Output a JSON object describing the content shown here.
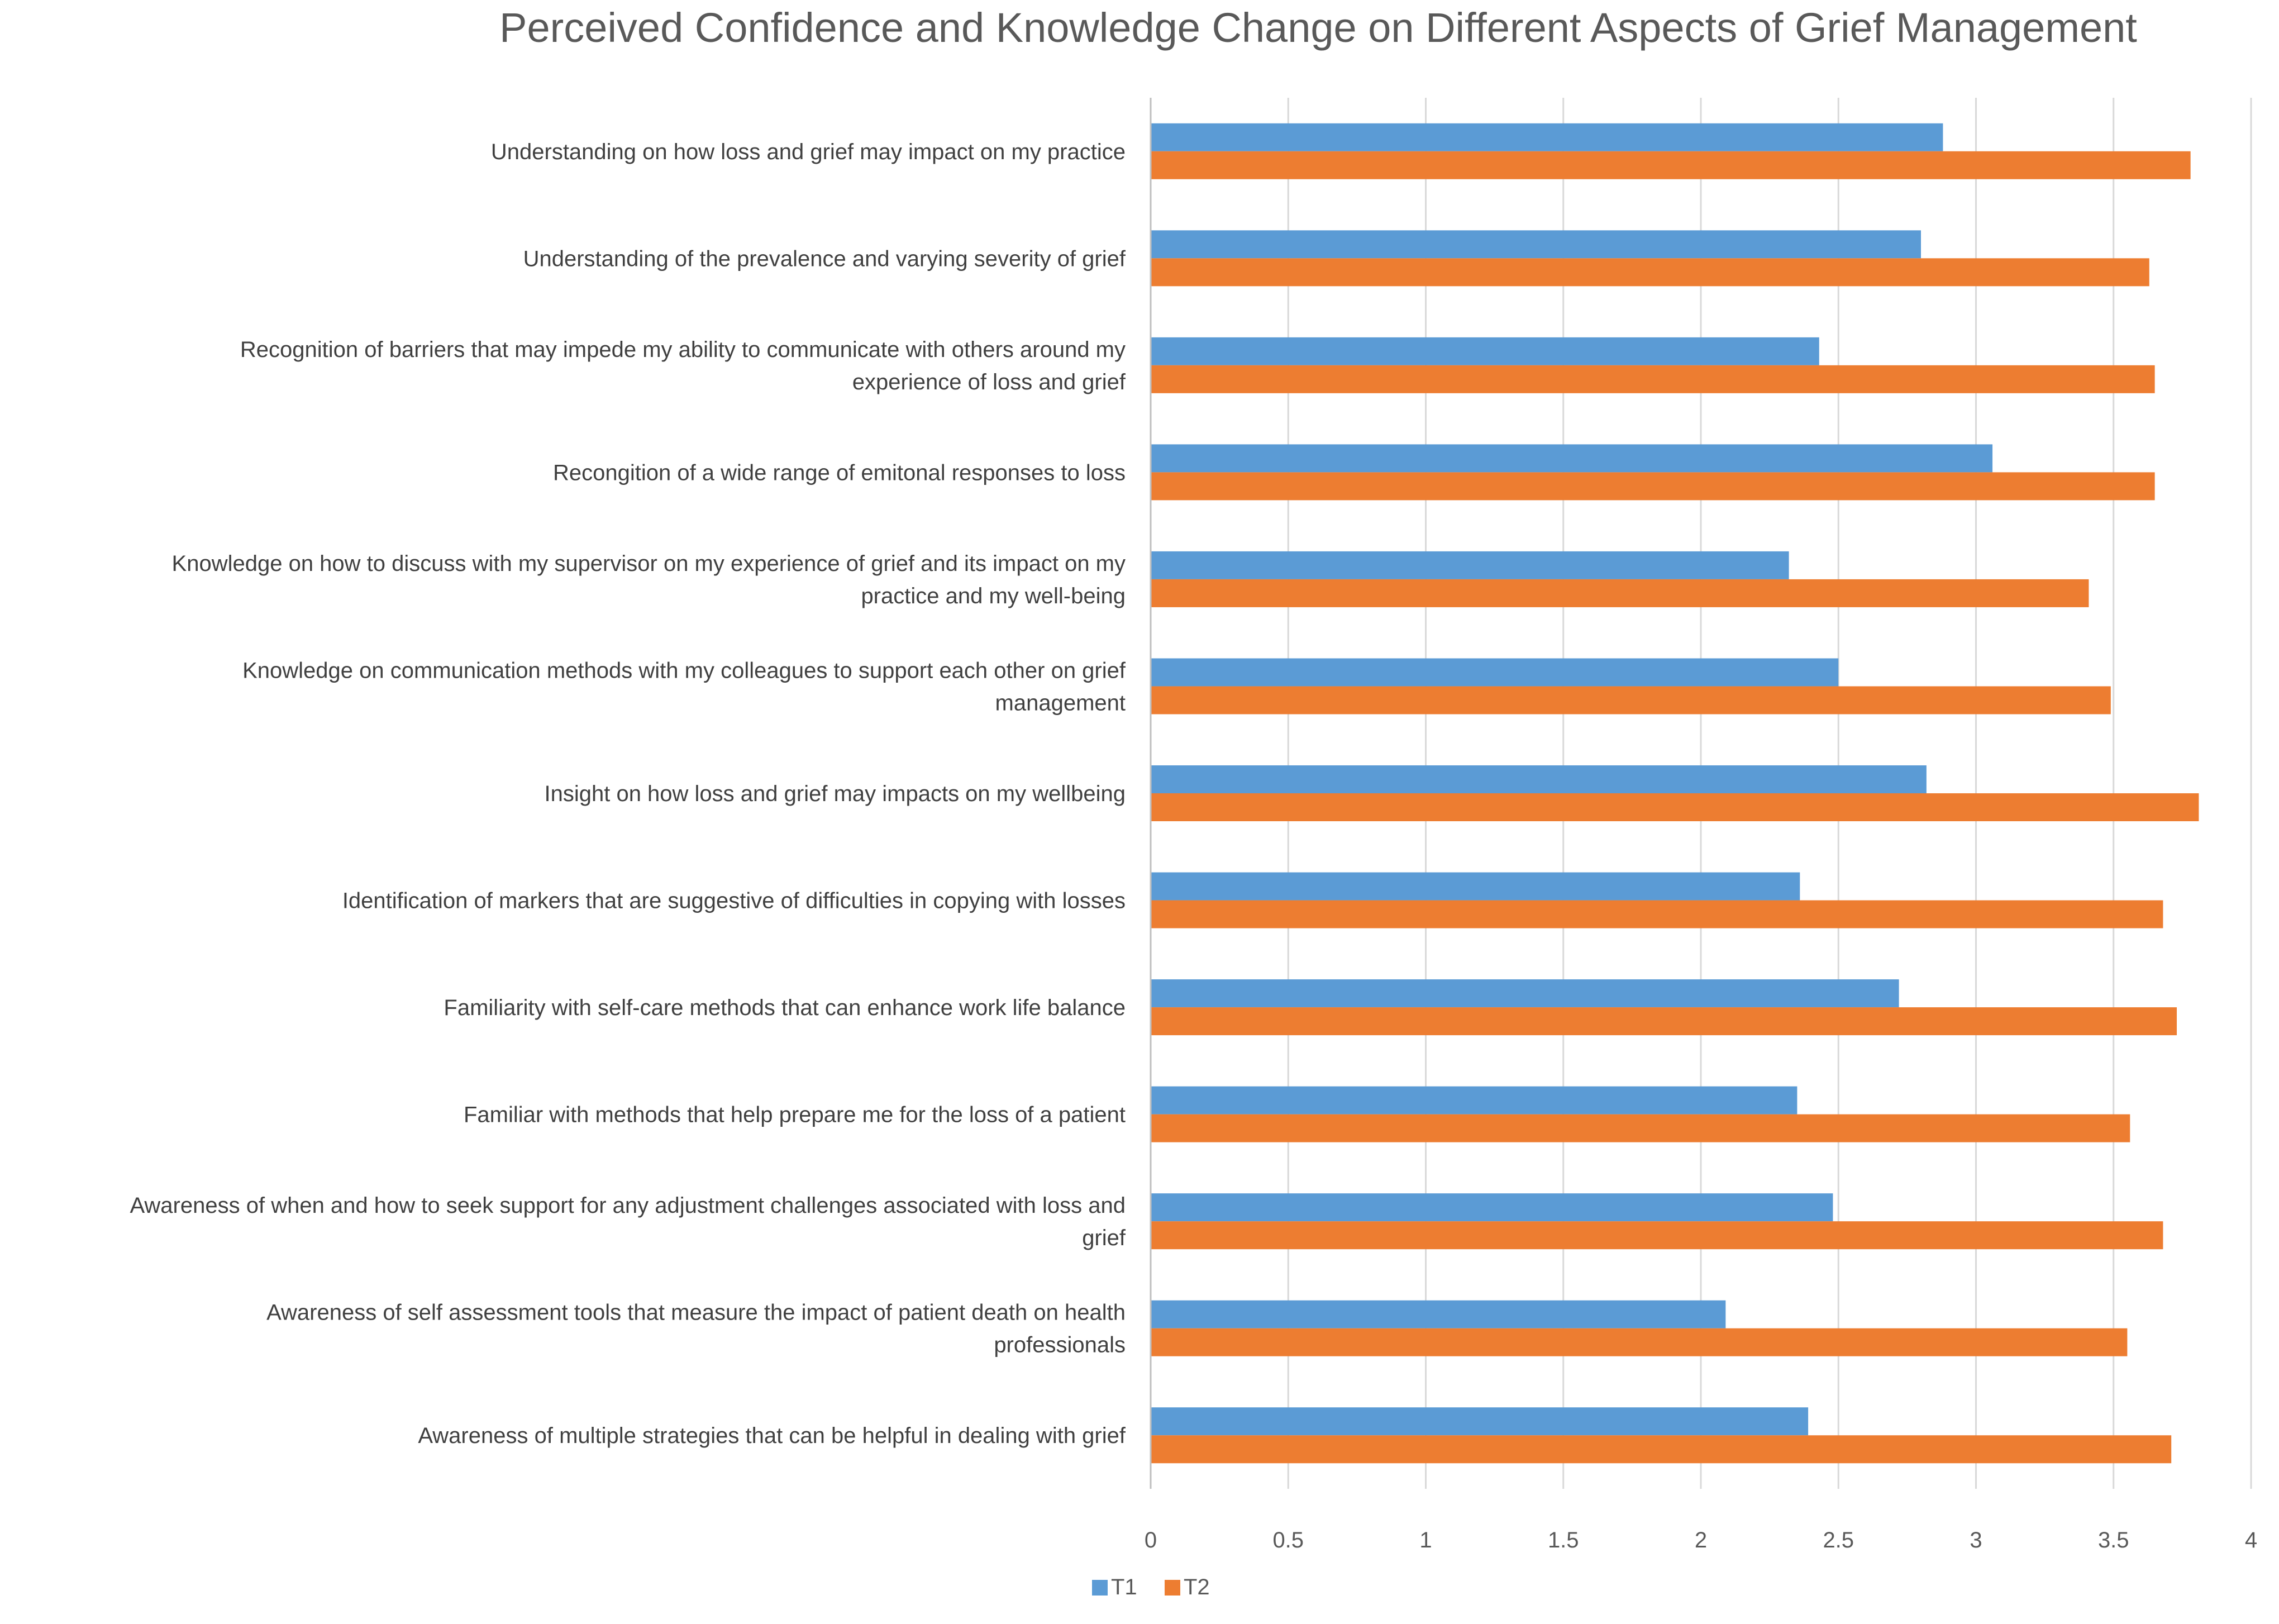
{
  "chart_data": {
    "type": "bar",
    "orientation": "horizontal",
    "title": "Perceived Confidence and Knowledge Change on Different Aspects of Grief Management",
    "xlabel": "",
    "ylabel": "",
    "xlim": [
      0,
      4
    ],
    "ticks": [
      "0",
      "0.5",
      "1",
      "1.5",
      "2",
      "2.5",
      "3",
      "3.5",
      "4"
    ],
    "tick_values": [
      0,
      0.5,
      1,
      1.5,
      2,
      2.5,
      3,
      3.5,
      4
    ],
    "grid": true,
    "legend_position": "bottom",
    "categories": [
      [
        "Understanding on how loss and grief may impact on my practice"
      ],
      [
        "Understanding of the prevalence and varying severity of grief"
      ],
      [
        "Recognition of barriers that may impede my ability to communicate with others around my",
        "experience of loss and grief"
      ],
      [
        "Recongition of a wide range of emitonal responses to loss"
      ],
      [
        "Knowledge on how to discuss with my supervisor on my experience of grief and its impact on my",
        "practice and my well-being"
      ],
      [
        "Knowledge on communication methods with my colleagues to support each other on grief",
        "management"
      ],
      [
        "Insight on how loss and grief may impacts on my wellbeing"
      ],
      [
        "Identification of markers that are suggestive of difficulties in copying with losses"
      ],
      [
        "Familiarity with self-care methods that can enhance work life balance"
      ],
      [
        "Familiar with methods that help prepare me for the loss of a patient"
      ],
      [
        "Awareness of when and how to seek support for any adjustment challenges associated with loss and",
        "grief"
      ],
      [
        "Awareness of self assessment tools that measure the impact of patient death on health",
        "professionals"
      ],
      [
        "Awareness of multiple strategies that can be helpful in dealing with grief"
      ]
    ],
    "series": [
      {
        "name": "T1",
        "color": "#5b9bd5",
        "values": [
          2.88,
          2.8,
          2.43,
          3.06,
          2.32,
          2.5,
          2.82,
          2.36,
          2.72,
          2.35,
          2.48,
          2.09,
          2.39
        ]
      },
      {
        "name": "T2",
        "color": "#ed7d31",
        "values": [
          3.78,
          3.63,
          3.65,
          3.65,
          3.41,
          3.49,
          3.81,
          3.68,
          3.73,
          3.56,
          3.68,
          3.55,
          3.71
        ]
      }
    ]
  }
}
